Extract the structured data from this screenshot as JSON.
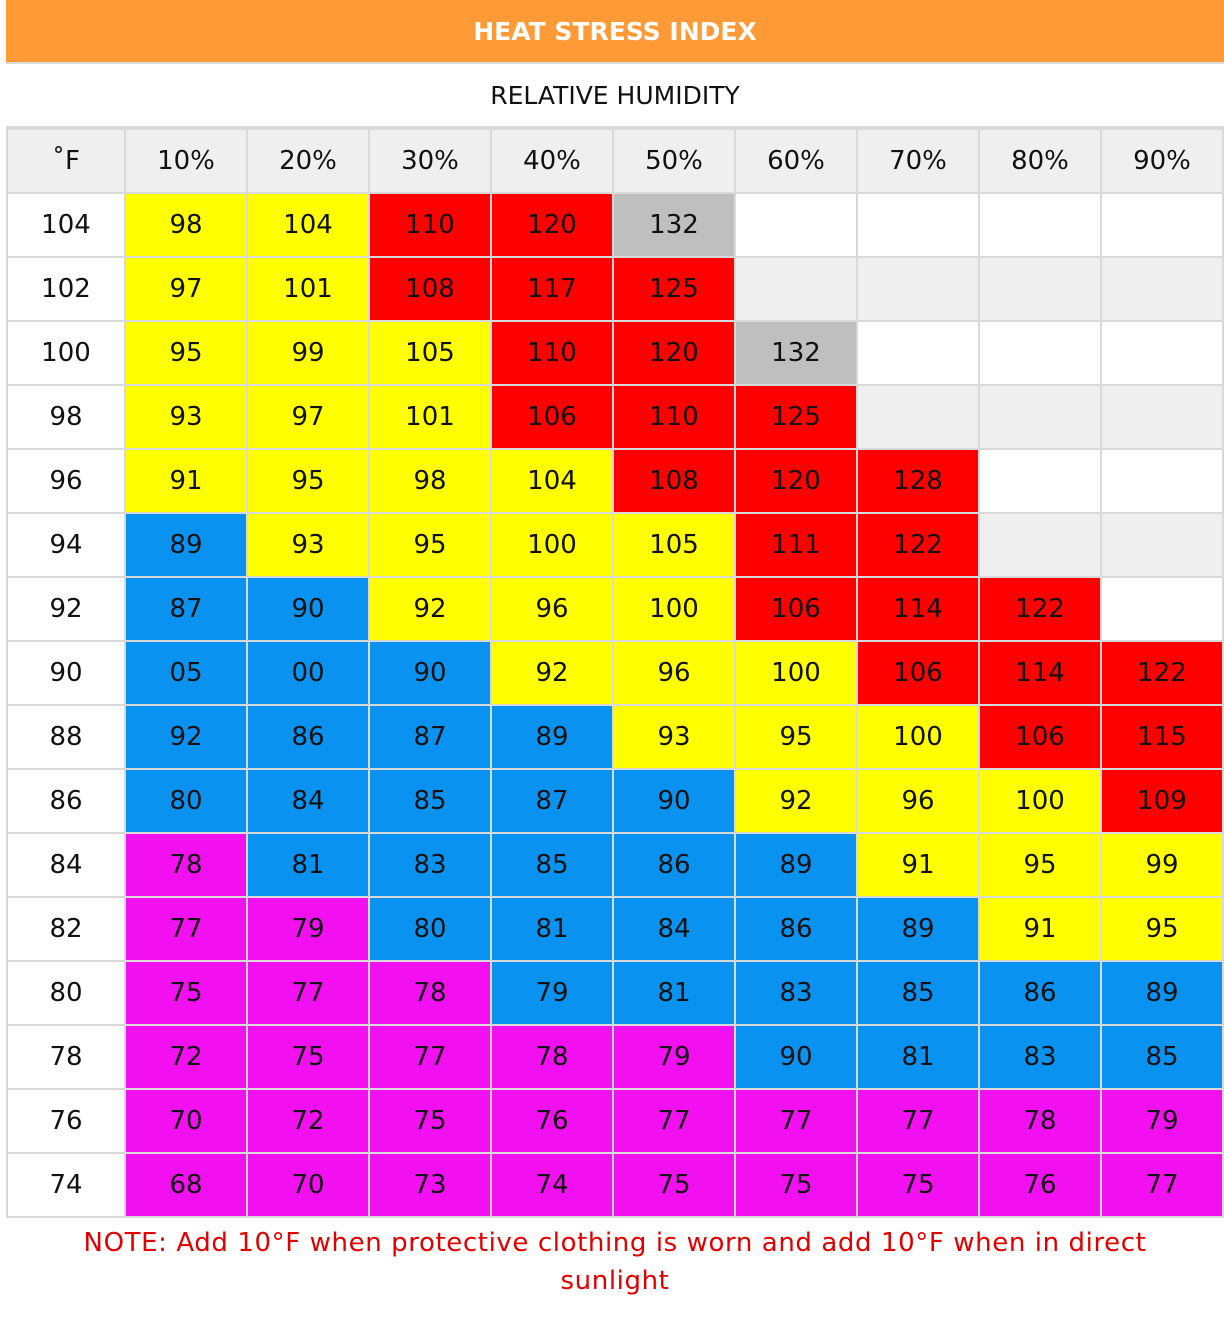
{
  "title": "HEAT STRESS INDEX",
  "subtitle": "RELATIVE HUMIDITY",
  "note": "NOTE: Add 10°F when protective clothing is worn and add 10°F when in direct sunlight",
  "colors": {
    "yellow": "#ffff00",
    "red": "#ff0000",
    "gray": "#bfbfbf",
    "blue": "#0a92f0",
    "magenta": "#f20ff0",
    "header": "#ff9a36",
    "note": "#e10000"
  },
  "chart_data": {
    "type": "table",
    "corner_label": "˚F",
    "columns": [
      "10%",
      "20%",
      "30%",
      "40%",
      "50%",
      "60%",
      "70%",
      "80%",
      "90%"
    ],
    "rows": [
      {
        "label": "104",
        "cells": [
          {
            "v": "98",
            "c": "yellow"
          },
          {
            "v": "104",
            "c": "yellow"
          },
          {
            "v": "110",
            "c": "red"
          },
          {
            "v": "120",
            "c": "red"
          },
          {
            "v": "132",
            "c": "gray"
          },
          {
            "v": "",
            "c": "empty"
          },
          {
            "v": "",
            "c": "empty"
          },
          {
            "v": "",
            "c": "empty"
          },
          {
            "v": "",
            "c": "empty"
          }
        ]
      },
      {
        "label": "102",
        "cells": [
          {
            "v": "97",
            "c": "yellow"
          },
          {
            "v": "101",
            "c": "yellow"
          },
          {
            "v": "108",
            "c": "red"
          },
          {
            "v": "117",
            "c": "red"
          },
          {
            "v": "125",
            "c": "red"
          },
          {
            "v": "",
            "c": "empty"
          },
          {
            "v": "",
            "c": "empty"
          },
          {
            "v": "",
            "c": "empty"
          },
          {
            "v": "",
            "c": "empty"
          }
        ]
      },
      {
        "label": "100",
        "cells": [
          {
            "v": "95",
            "c": "yellow"
          },
          {
            "v": "99",
            "c": "yellow"
          },
          {
            "v": "105",
            "c": "yellow"
          },
          {
            "v": "110",
            "c": "red"
          },
          {
            "v": "120",
            "c": "red"
          },
          {
            "v": "132",
            "c": "gray"
          },
          {
            "v": "",
            "c": "empty"
          },
          {
            "v": "",
            "c": "empty"
          },
          {
            "v": "",
            "c": "empty"
          }
        ]
      },
      {
        "label": "98",
        "cells": [
          {
            "v": "93",
            "c": "yellow"
          },
          {
            "v": "97",
            "c": "yellow"
          },
          {
            "v": "101",
            "c": "yellow"
          },
          {
            "v": "106",
            "c": "red"
          },
          {
            "v": "110",
            "c": "red"
          },
          {
            "v": "125",
            "c": "red"
          },
          {
            "v": "",
            "c": "empty"
          },
          {
            "v": "",
            "c": "empty"
          },
          {
            "v": "",
            "c": "empty"
          }
        ]
      },
      {
        "label": "96",
        "cells": [
          {
            "v": "91",
            "c": "yellow"
          },
          {
            "v": "95",
            "c": "yellow"
          },
          {
            "v": "98",
            "c": "yellow"
          },
          {
            "v": "104",
            "c": "yellow"
          },
          {
            "v": "108",
            "c": "red"
          },
          {
            "v": "120",
            "c": "red"
          },
          {
            "v": "128",
            "c": "red"
          },
          {
            "v": "",
            "c": "empty"
          },
          {
            "v": "",
            "c": "empty"
          }
        ]
      },
      {
        "label": "94",
        "cells": [
          {
            "v": "89",
            "c": "blue"
          },
          {
            "v": "93",
            "c": "yellow"
          },
          {
            "v": "95",
            "c": "yellow"
          },
          {
            "v": "100",
            "c": "yellow"
          },
          {
            "v": "105",
            "c": "yellow"
          },
          {
            "v": "111",
            "c": "red"
          },
          {
            "v": "122",
            "c": "red"
          },
          {
            "v": "",
            "c": "empty"
          },
          {
            "v": "",
            "c": "empty"
          }
        ]
      },
      {
        "label": "92",
        "cells": [
          {
            "v": "87",
            "c": "blue"
          },
          {
            "v": "90",
            "c": "blue"
          },
          {
            "v": "92",
            "c": "yellow"
          },
          {
            "v": "96",
            "c": "yellow"
          },
          {
            "v": "100",
            "c": "yellow"
          },
          {
            "v": "106",
            "c": "red"
          },
          {
            "v": "114",
            "c": "red"
          },
          {
            "v": "122",
            "c": "red"
          },
          {
            "v": "",
            "c": "empty"
          }
        ]
      },
      {
        "label": "90",
        "cells": [
          {
            "v": "05",
            "c": "blue"
          },
          {
            "v": "00",
            "c": "blue"
          },
          {
            "v": "90",
            "c": "blue"
          },
          {
            "v": "92",
            "c": "yellow"
          },
          {
            "v": "96",
            "c": "yellow"
          },
          {
            "v": "100",
            "c": "yellow"
          },
          {
            "v": "106",
            "c": "red"
          },
          {
            "v": "114",
            "c": "red"
          },
          {
            "v": "122",
            "c": "red"
          }
        ]
      },
      {
        "label": "88",
        "cells": [
          {
            "v": "92",
            "c": "blue"
          },
          {
            "v": "86",
            "c": "blue"
          },
          {
            "v": "87",
            "c": "blue"
          },
          {
            "v": "89",
            "c": "blue"
          },
          {
            "v": "93",
            "c": "yellow"
          },
          {
            "v": "95",
            "c": "yellow"
          },
          {
            "v": "100",
            "c": "yellow"
          },
          {
            "v": "106",
            "c": "red"
          },
          {
            "v": "115",
            "c": "red"
          }
        ]
      },
      {
        "label": "86",
        "cells": [
          {
            "v": "80",
            "c": "blue"
          },
          {
            "v": "84",
            "c": "blue"
          },
          {
            "v": "85",
            "c": "blue"
          },
          {
            "v": "87",
            "c": "blue"
          },
          {
            "v": "90",
            "c": "blue"
          },
          {
            "v": "92",
            "c": "yellow"
          },
          {
            "v": "96",
            "c": "yellow"
          },
          {
            "v": "100",
            "c": "yellow"
          },
          {
            "v": "109",
            "c": "red"
          }
        ]
      },
      {
        "label": "84",
        "cells": [
          {
            "v": "78",
            "c": "magenta"
          },
          {
            "v": "81",
            "c": "blue"
          },
          {
            "v": "83",
            "c": "blue"
          },
          {
            "v": "85",
            "c": "blue"
          },
          {
            "v": "86",
            "c": "blue"
          },
          {
            "v": "89",
            "c": "blue"
          },
          {
            "v": "91",
            "c": "yellow"
          },
          {
            "v": "95",
            "c": "yellow"
          },
          {
            "v": "99",
            "c": "yellow"
          }
        ]
      },
      {
        "label": "82",
        "cells": [
          {
            "v": "77",
            "c": "magenta"
          },
          {
            "v": "79",
            "c": "magenta"
          },
          {
            "v": "80",
            "c": "blue"
          },
          {
            "v": "81",
            "c": "blue"
          },
          {
            "v": "84",
            "c": "blue"
          },
          {
            "v": "86",
            "c": "blue"
          },
          {
            "v": "89",
            "c": "blue"
          },
          {
            "v": "91",
            "c": "yellow"
          },
          {
            "v": "95",
            "c": "yellow"
          }
        ]
      },
      {
        "label": "80",
        "cells": [
          {
            "v": "75",
            "c": "magenta"
          },
          {
            "v": "77",
            "c": "magenta"
          },
          {
            "v": "78",
            "c": "magenta"
          },
          {
            "v": "79",
            "c": "blue"
          },
          {
            "v": "81",
            "c": "blue"
          },
          {
            "v": "83",
            "c": "blue"
          },
          {
            "v": "85",
            "c": "blue"
          },
          {
            "v": "86",
            "c": "blue"
          },
          {
            "v": "89",
            "c": "blue"
          }
        ]
      },
      {
        "label": "78",
        "cells": [
          {
            "v": "72",
            "c": "magenta"
          },
          {
            "v": "75",
            "c": "magenta"
          },
          {
            "v": "77",
            "c": "magenta"
          },
          {
            "v": "78",
            "c": "magenta"
          },
          {
            "v": "79",
            "c": "magenta"
          },
          {
            "v": "90",
            "c": "blue"
          },
          {
            "v": "81",
            "c": "blue"
          },
          {
            "v": "83",
            "c": "blue"
          },
          {
            "v": "85",
            "c": "blue"
          }
        ]
      },
      {
        "label": "76",
        "cells": [
          {
            "v": "70",
            "c": "magenta"
          },
          {
            "v": "72",
            "c": "magenta"
          },
          {
            "v": "75",
            "c": "magenta"
          },
          {
            "v": "76",
            "c": "magenta"
          },
          {
            "v": "77",
            "c": "magenta"
          },
          {
            "v": "77",
            "c": "magenta"
          },
          {
            "v": "77",
            "c": "magenta"
          },
          {
            "v": "78",
            "c": "magenta"
          },
          {
            "v": "79",
            "c": "magenta"
          }
        ]
      },
      {
        "label": "74",
        "cells": [
          {
            "v": "68",
            "c": "magenta"
          },
          {
            "v": "70",
            "c": "magenta"
          },
          {
            "v": "73",
            "c": "magenta"
          },
          {
            "v": "74",
            "c": "magenta"
          },
          {
            "v": "75",
            "c": "magenta"
          },
          {
            "v": "75",
            "c": "magenta"
          },
          {
            "v": "75",
            "c": "magenta"
          },
          {
            "v": "76",
            "c": "magenta"
          },
          {
            "v": "77",
            "c": "magenta"
          }
        ]
      }
    ]
  }
}
